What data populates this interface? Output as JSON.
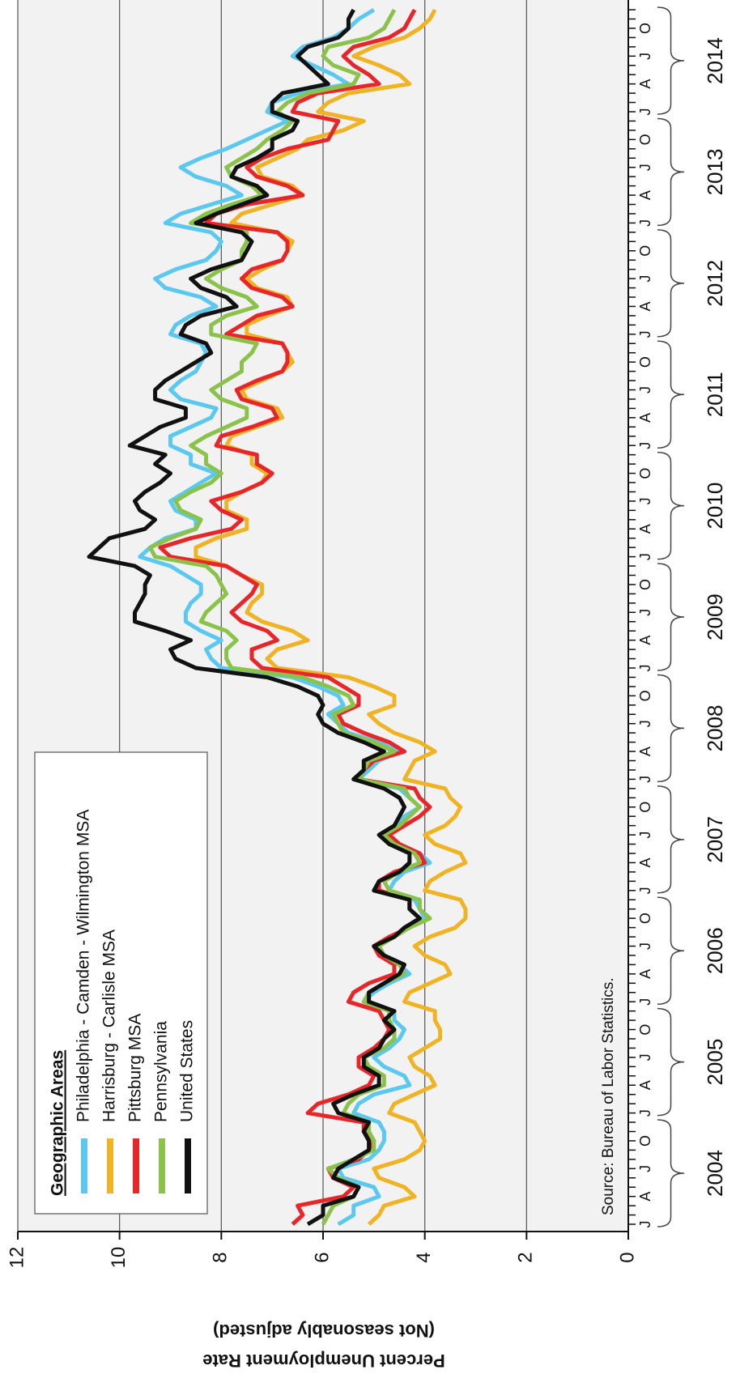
{
  "chart_data": {
    "type": "line",
    "y_label": [
      "Percent Unemployment Rate",
      "(Not seasonably adjusted)"
    ],
    "legend_title": "Geographic Areas",
    "source": "Source: Bureau of Labor Statistics.",
    "categories": [
      "J",
      null,
      null,
      "A",
      null,
      null,
      "J",
      null,
      null,
      "O",
      null,
      null,
      "J",
      null,
      null,
      "A",
      null,
      null,
      "J",
      null,
      null,
      "O",
      null,
      null,
      "J",
      null,
      null,
      "A",
      null,
      null,
      "J",
      null,
      null,
      "O",
      null,
      null,
      "J",
      null,
      null,
      "A",
      null,
      null,
      "J",
      null,
      null,
      "O",
      null,
      null,
      "J",
      null,
      null,
      "A",
      null,
      null,
      "J",
      null,
      null,
      "O",
      null,
      null,
      "J",
      null,
      null,
      "A",
      null,
      null,
      "J",
      null,
      null,
      "O",
      null,
      null,
      "J",
      null,
      null,
      "A",
      null,
      null,
      "J",
      null,
      null,
      "O",
      null,
      null,
      "J",
      null,
      null,
      "A",
      null,
      null,
      "J",
      null,
      null,
      "O",
      null,
      null,
      "J",
      null,
      null,
      "A",
      null,
      null,
      "J",
      null,
      null,
      "O",
      null,
      null,
      "J",
      null,
      null,
      "A",
      null,
      null,
      "J",
      null,
      null,
      "O",
      null,
      null,
      "J",
      null,
      null,
      "A",
      null,
      null,
      "J",
      null,
      null,
      "O",
      null,
      null
    ],
    "x_groups": [
      "2004",
      "2005",
      "2006",
      "2007",
      "2008",
      "2009",
      "2010",
      "2011",
      "2012",
      "2013",
      "2014"
    ],
    "ylim": [
      0,
      12
    ],
    "yticks": [
      0,
      2,
      4,
      6,
      8,
      10,
      12
    ],
    "grid": true,
    "series": [
      {
        "name": "Philadelphia - Camden - Wilmington MSA",
        "color": "#5bc8f0",
        "values": [
          5.7,
          5.4,
          5.4,
          4.9,
          5.0,
          5.6,
          5.7,
          5.1,
          4.9,
          4.8,
          4.8,
          4.9,
          5.4,
          5.3,
          5.0,
          4.3,
          4.4,
          4.8,
          5.0,
          4.7,
          4.5,
          4.4,
          4.6,
          4.6,
          5.2,
          5.0,
          4.7,
          4.3,
          4.5,
          4.9,
          5.0,
          4.6,
          4.3,
          4.0,
          4.1,
          4.2,
          4.7,
          4.6,
          4.4,
          3.9,
          4.1,
          4.5,
          4.7,
          4.6,
          4.4,
          4.1,
          4.3,
          4.5,
          5.3,
          5.1,
          4.9,
          4.5,
          4.9,
          5.5,
          5.7,
          5.9,
          5.6,
          5.7,
          6.1,
          6.6,
          8.0,
          8.2,
          8.3,
          8.0,
          8.4,
          8.7,
          8.7,
          8.6,
          8.4,
          8.4,
          8.7,
          9.0,
          9.6,
          9.4,
          9.1,
          8.5,
          8.5,
          8.9,
          9.0,
          8.7,
          8.4,
          8.1,
          8.6,
          8.6,
          9.0,
          9.0,
          8.6,
          8.2,
          8.1,
          8.8,
          9.0,
          8.8,
          8.5,
          8.4,
          8.3,
          8.4,
          9.0,
          8.9,
          8.6,
          8.1,
          8.4,
          9.1,
          9.3,
          8.9,
          8.3,
          8.1,
          8.0,
          8.2,
          9.1,
          8.8,
          8.2,
          7.6,
          7.9,
          8.5,
          8.8,
          8.4,
          7.9,
          7.5,
          7.1,
          6.7,
          7.1,
          7.0,
          6.5,
          5.5,
          5.8,
          6.2,
          6.6,
          6.4,
          5.8,
          5.5,
          5.3,
          5.0
        ]
      },
      {
        "name": "Harrisburg - Carlisle MSA",
        "color": "#f0b323",
        "values": [
          5.1,
          4.9,
          4.8,
          4.2,
          4.4,
          4.9,
          5.0,
          4.4,
          4.1,
          4.0,
          4.1,
          4.2,
          4.7,
          4.6,
          4.2,
          3.8,
          3.9,
          4.2,
          4.3,
          4.0,
          3.7,
          3.7,
          3.8,
          3.8,
          4.4,
          4.3,
          3.9,
          3.5,
          3.6,
          4.0,
          4.2,
          3.9,
          3.4,
          3.2,
          3.2,
          3.3,
          4.0,
          3.9,
          3.6,
          3.2,
          3.3,
          3.8,
          4.0,
          3.6,
          3.4,
          3.3,
          3.5,
          3.6,
          4.4,
          4.3,
          4.2,
          3.8,
          4.1,
          4.6,
          4.9,
          5.1,
          4.6,
          4.6,
          5.0,
          5.5,
          6.9,
          7.1,
          6.9,
          6.3,
          6.6,
          7.2,
          7.5,
          7.4,
          7.2,
          7.2,
          7.6,
          7.9,
          8.5,
          8.5,
          8.1,
          7.5,
          7.5,
          7.9,
          7.9,
          7.6,
          7.2,
          7.1,
          7.4,
          7.4,
          7.9,
          7.8,
          7.3,
          6.8,
          6.9,
          7.5,
          7.6,
          7.2,
          6.8,
          6.6,
          6.7,
          6.8,
          7.5,
          7.5,
          7.1,
          6.6,
          6.7,
          7.3,
          7.5,
          7.2,
          6.8,
          6.7,
          6.6,
          6.9,
          7.8,
          7.6,
          7.0,
          6.4,
          6.6,
          7.2,
          7.3,
          6.9,
          6.5,
          6.3,
          5.6,
          5.2,
          6.1,
          5.9,
          5.5,
          4.3,
          4.5,
          4.9,
          5.4,
          5.0,
          4.4,
          4.1,
          3.9,
          3.8
        ]
      },
      {
        "name": "Pittsburg MSA",
        "color": "#e8262a",
        "values": [
          6.6,
          6.4,
          6.5,
          5.6,
          5.4,
          5.8,
          5.9,
          5.3,
          5.1,
          5.0,
          5.2,
          5.2,
          6.3,
          6.1,
          5.5,
          5.1,
          5.0,
          5.3,
          5.3,
          5.0,
          4.8,
          4.7,
          4.8,
          4.9,
          5.5,
          5.4,
          5.1,
          4.6,
          4.6,
          4.9,
          5.0,
          4.7,
          4.3,
          4.1,
          4.3,
          4.3,
          4.9,
          4.9,
          4.6,
          4.0,
          4.1,
          4.5,
          4.7,
          4.4,
          4.1,
          3.9,
          4.1,
          4.2,
          5.3,
          5.2,
          5.0,
          4.4,
          4.7,
          5.2,
          5.6,
          5.7,
          5.3,
          5.3,
          5.6,
          5.9,
          7.2,
          7.4,
          7.4,
          6.9,
          7.1,
          7.6,
          7.8,
          7.6,
          7.4,
          7.3,
          7.6,
          7.9,
          9.0,
          9.2,
          8.6,
          7.8,
          7.6,
          8.0,
          8.2,
          7.6,
          7.2,
          7.0,
          7.3,
          7.3,
          8.1,
          8.0,
          7.4,
          6.9,
          7.0,
          7.6,
          7.7,
          7.3,
          6.8,
          6.7,
          6.7,
          6.8,
          7.9,
          7.6,
          7.3,
          6.6,
          6.8,
          7.4,
          7.6,
          7.4,
          6.8,
          6.7,
          6.7,
          6.9,
          8.3,
          8.1,
          7.5,
          6.4,
          6.7,
          7.3,
          7.5,
          7.2,
          6.7,
          5.9,
          5.8,
          5.7,
          6.6,
          6.5,
          6.1,
          4.9,
          5.1,
          5.4,
          5.6,
          5.4,
          4.7,
          4.4,
          4.3,
          4.2
        ]
      },
      {
        "name": "Pennsylvania",
        "color": "#8bc34a",
        "values": [
          6.0,
          5.9,
          5.8,
          5.4,
          5.3,
          5.7,
          5.9,
          5.4,
          5.0,
          5.0,
          5.1,
          5.1,
          5.6,
          5.5,
          5.3,
          4.8,
          4.8,
          5.1,
          5.2,
          4.8,
          4.6,
          4.6,
          4.7,
          4.7,
          5.2,
          5.1,
          4.8,
          4.4,
          4.5,
          4.8,
          4.9,
          4.6,
          4.3,
          3.9,
          4.1,
          4.1,
          4.7,
          4.8,
          4.5,
          4.1,
          4.2,
          4.6,
          4.8,
          4.5,
          4.3,
          4.1,
          4.3,
          4.4,
          5.3,
          5.2,
          5.1,
          4.6,
          5.0,
          5.6,
          5.7,
          5.8,
          5.4,
          5.5,
          5.9,
          6.4,
          7.8,
          7.9,
          7.9,
          7.7,
          7.9,
          8.4,
          8.3,
          8.1,
          7.9,
          8.0,
          8.1,
          8.3,
          9.3,
          9.4,
          9.0,
          8.5,
          8.4,
          8.8,
          8.9,
          8.6,
          8.2,
          8.0,
          8.3,
          8.3,
          8.6,
          8.3,
          7.9,
          7.5,
          7.5,
          8.0,
          8.2,
          7.9,
          7.6,
          7.6,
          7.4,
          7.3,
          8.2,
          8.2,
          7.9,
          7.3,
          7.5,
          8.0,
          8.3,
          8.0,
          7.6,
          7.6,
          7.5,
          7.5,
          8.6,
          8.3,
          7.8,
          7.2,
          7.4,
          7.8,
          7.9,
          7.6,
          7.3,
          7.1,
          6.8,
          6.6,
          6.9,
          6.7,
          6.3,
          5.4,
          5.3,
          5.8,
          6.0,
          5.9,
          5.1,
          4.8,
          4.7,
          4.6
        ]
      },
      {
        "name": "United States",
        "color": "#111111",
        "values": [
          6.3,
          6.0,
          6.0,
          5.4,
          5.3,
          5.8,
          5.7,
          5.4,
          5.1,
          5.1,
          5.2,
          5.1,
          5.7,
          5.8,
          5.4,
          4.9,
          4.9,
          5.2,
          5.2,
          4.9,
          4.8,
          4.6,
          4.8,
          4.6,
          5.1,
          5.1,
          4.8,
          4.5,
          4.4,
          4.8,
          5.0,
          4.6,
          4.4,
          4.1,
          4.3,
          4.3,
          5.0,
          4.9,
          4.5,
          4.3,
          4.3,
          4.7,
          4.9,
          4.6,
          4.5,
          4.4,
          4.5,
          4.8,
          5.4,
          5.2,
          5.2,
          4.8,
          5.2,
          5.7,
          6.0,
          6.1,
          6.0,
          6.1,
          6.5,
          7.1,
          8.5,
          8.9,
          9.0,
          8.6,
          9.1,
          9.7,
          9.7,
          9.6,
          9.5,
          9.5,
          9.4,
          9.7,
          10.6,
          10.4,
          10.2,
          9.5,
          9.3,
          9.6,
          9.7,
          9.5,
          9.2,
          9.0,
          9.3,
          9.1,
          9.8,
          9.5,
          9.2,
          8.7,
          8.7,
          9.3,
          9.3,
          9.1,
          8.8,
          8.5,
          8.2,
          8.3,
          8.8,
          8.7,
          8.4,
          7.7,
          7.9,
          8.4,
          8.6,
          8.2,
          7.6,
          7.5,
          7.4,
          7.6,
          8.5,
          8.1,
          7.6,
          7.1,
          7.3,
          7.8,
          7.7,
          7.3,
          7.0,
          7.0,
          6.6,
          6.5,
          7.0,
          7.0,
          6.8,
          5.9,
          6.1,
          6.3,
          6.5,
          6.3,
          5.7,
          5.5,
          5.5,
          5.4
        ]
      }
    ]
  }
}
